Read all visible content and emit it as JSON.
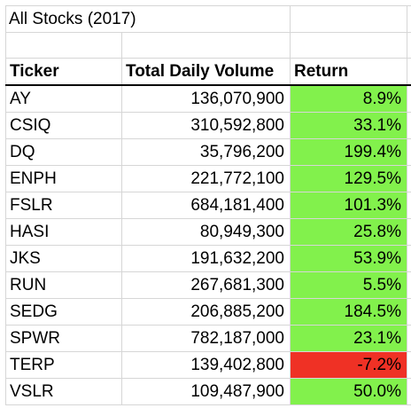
{
  "sheet": {
    "title": "All Stocks (2017)",
    "headers": {
      "ticker": "Ticker",
      "volume": "Total Daily Volume",
      "return": "Return"
    },
    "rows": [
      {
        "ticker": "AY",
        "volume": "136,070,900",
        "return": "8.9%",
        "sign": "positive"
      },
      {
        "ticker": "CSIQ",
        "volume": "310,592,800",
        "return": "33.1%",
        "sign": "positive"
      },
      {
        "ticker": "DQ",
        "volume": "35,796,200",
        "return": "199.4%",
        "sign": "positive"
      },
      {
        "ticker": "ENPH",
        "volume": "221,772,100",
        "return": "129.5%",
        "sign": "positive"
      },
      {
        "ticker": "FSLR",
        "volume": "684,181,400",
        "return": "101.3%",
        "sign": "positive"
      },
      {
        "ticker": "HASI",
        "volume": "80,949,300",
        "return": "25.8%",
        "sign": "positive"
      },
      {
        "ticker": "JKS",
        "volume": "191,632,200",
        "return": "53.9%",
        "sign": "positive"
      },
      {
        "ticker": "RUN",
        "volume": "267,681,300",
        "return": "5.5%",
        "sign": "positive"
      },
      {
        "ticker": "SEDG",
        "volume": "206,885,200",
        "return": "184.5%",
        "sign": "positive"
      },
      {
        "ticker": "SPWR",
        "volume": "782,187,000",
        "return": "23.1%",
        "sign": "positive"
      },
      {
        "ticker": "TERP",
        "volume": "139,402,800",
        "return": "-7.2%",
        "sign": "negative"
      },
      {
        "ticker": "VSLR",
        "volume": "109,487,900",
        "return": "50.0%",
        "sign": "positive"
      }
    ]
  },
  "colors": {
    "positive_fill": "#82f14c",
    "negative_fill": "#ef3125",
    "gridline": "#d6d6d6",
    "header_rule": "#000000"
  }
}
